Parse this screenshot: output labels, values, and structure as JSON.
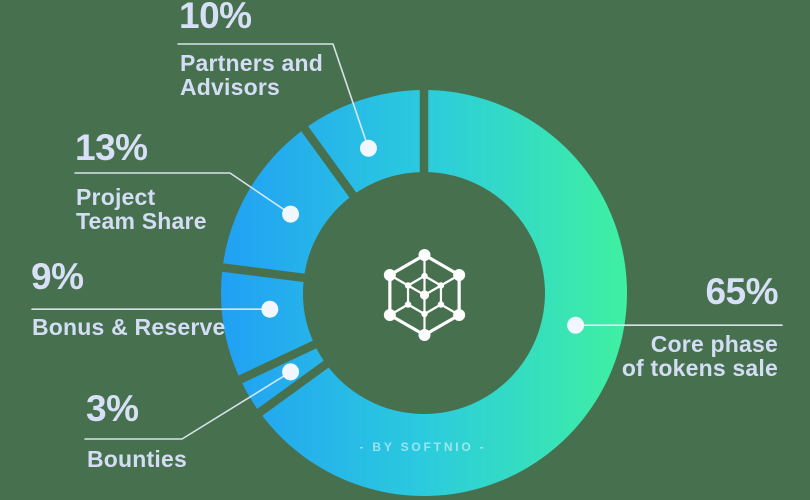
{
  "background_color": "#47704F",
  "text_color": "#D7E0F6",
  "line_color": "rgba(228,240,250,0.9)",
  "dot_color": "#F0F7FE",
  "icon": {
    "name": "network-cube-icon",
    "color": "#FFFFFF"
  },
  "watermark": {
    "text": "- BY SOFTNIO -"
  },
  "chart_data": {
    "type": "pie",
    "donut": true,
    "start_angle_deg": 0,
    "clockwise": true,
    "legend_position": "callouts",
    "slices": [
      {
        "label": "Core phase of tokens sale",
        "value": 65
      },
      {
        "label": "Bounties",
        "value": 3
      },
      {
        "label": "Bonus & Reserve",
        "value": 9
      },
      {
        "label": "Project Team Share",
        "value": 13
      },
      {
        "label": "Partners and Advisors",
        "value": 10
      }
    ],
    "gradient": [
      "#21A0F4",
      "#2BCBDE",
      "#3FF0A1"
    ]
  },
  "callouts": [
    {
      "pct": "65%",
      "label": "Core phase\nof tokens sale"
    },
    {
      "pct": "3%",
      "label": "Bounties"
    },
    {
      "pct": "9%",
      "label": "Bonus & Reserve"
    },
    {
      "pct": "13%",
      "label": "Project\nTeam Share"
    },
    {
      "pct": "10%",
      "label": "Partners and\nAdvisors"
    }
  ]
}
